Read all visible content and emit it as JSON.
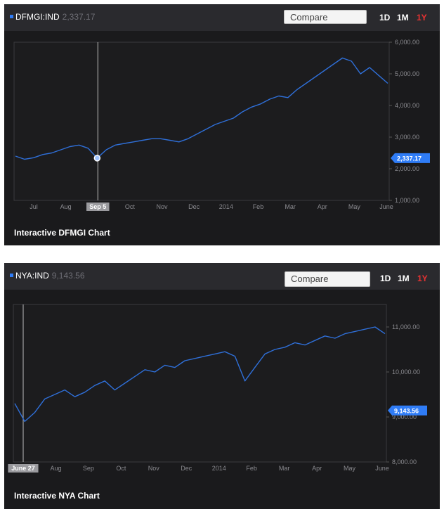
{
  "colors": {
    "line": "#2f6fd8",
    "accent": "#2f7cf6",
    "active_range": "#e83232"
  },
  "ranges": [
    "1D",
    "1M",
    "1Y"
  ],
  "active_range": "1Y",
  "compare_placeholder": "Compare",
  "chart_data": [
    {
      "type": "line",
      "ticker": "DFMGI:IND",
      "last_value": "2,337.17",
      "last_value_num": 2337.17,
      "footer": "Interactive DFMGI Chart",
      "x_ticks": [
        "Jul",
        "Aug",
        "Sep 5",
        "Oct",
        "Nov",
        "Dec",
        "2014",
        "Feb",
        "Mar",
        "Apr",
        "May",
        "June"
      ],
      "crosshair_label": "Sep 5",
      "crosshair_value": 2337.17,
      "y_ticks": [
        "1,000.00",
        "2,000.00",
        "3,000.00",
        "4,000.00",
        "5,000.00",
        "6,000.00"
      ],
      "ylim": [
        1000,
        6000
      ],
      "y": [
        2400,
        2300,
        2350,
        2450,
        2500,
        2600,
        2700,
        2750,
        2650,
        2337,
        2600,
        2750,
        2800,
        2850,
        2900,
        2950,
        2950,
        2900,
        2850,
        2950,
        3100,
        3250,
        3400,
        3500,
        3600,
        3800,
        3950,
        4050,
        4200,
        4300,
        4250,
        4500,
        4700,
        4900,
        5100,
        5300,
        5500,
        5400,
        5000,
        5200,
        4950,
        4700
      ]
    },
    {
      "type": "line",
      "ticker": "NYA:IND",
      "last_value": "9,143.56",
      "last_value_num": 9143.56,
      "footer": "Interactive NYA Chart",
      "x_ticks": [
        "June 27",
        "Aug",
        "Sep",
        "Oct",
        "Nov",
        "Dec",
        "2014",
        "Feb",
        "Mar",
        "Apr",
        "May",
        "June"
      ],
      "crosshair_label": "June 27",
      "y_ticks": [
        "8,000.00",
        "9,000.00",
        "10,000.00",
        "11,000.00"
      ],
      "ylim": [
        8000,
        11500
      ],
      "y": [
        9300,
        8900,
        9100,
        9400,
        9500,
        9600,
        9450,
        9550,
        9700,
        9800,
        9600,
        9750,
        9900,
        10050,
        10000,
        10150,
        10100,
        10250,
        10300,
        10350,
        10400,
        10450,
        10350,
        9800,
        10100,
        10400,
        10500,
        10550,
        10650,
        10600,
        10700,
        10800,
        10750,
        10850,
        10900,
        10950,
        11000,
        10850
      ]
    }
  ]
}
